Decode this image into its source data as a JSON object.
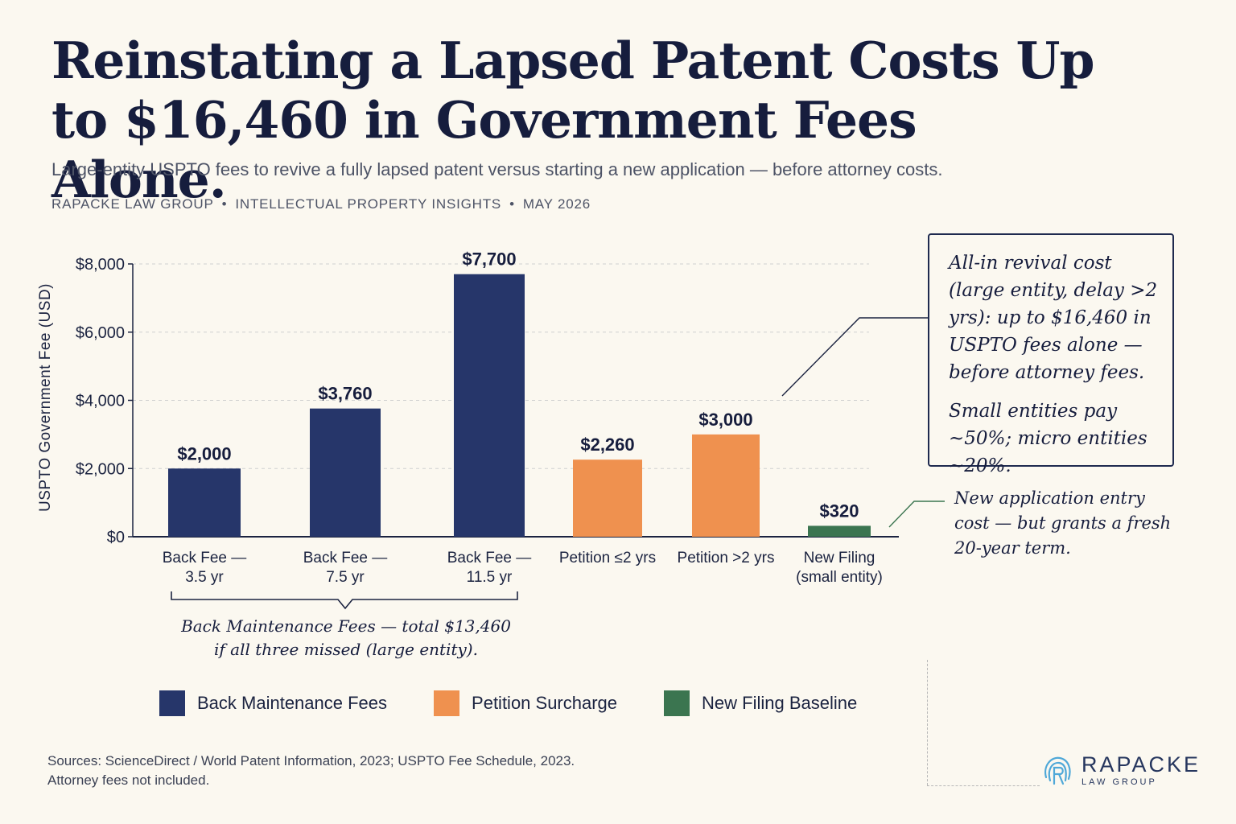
{
  "header": {
    "title": "Reinstating a Lapsed Patent Costs Up to $16,460 in Government Fees Alone.",
    "subtitle": "Large-entity USPTO fees to revive a fully lapsed patent versus starting a new application — before attorney costs.",
    "byline": [
      "RAPACKE LAW GROUP",
      "INTELLECTUAL PROPERTY INSIGHTS",
      "MAY 2026"
    ],
    "byline_separator": "•"
  },
  "chart_data": {
    "type": "bar",
    "ylabel": "USPTO Government Fee (USD)",
    "xlabel": "",
    "ylim": [
      0,
      8000
    ],
    "yticks": [
      0,
      2000,
      4000,
      6000,
      8000
    ],
    "ytick_labels": [
      "$0",
      "$2,000",
      "$4,000",
      "$6,000",
      "$8,000"
    ],
    "grid": true,
    "categories": [
      [
        "Back Fee —",
        "3.5 yr"
      ],
      [
        "Back Fee —",
        "7.5 yr"
      ],
      [
        "Back Fee —",
        "11.5 yr"
      ],
      [
        "Petition ≤2 yrs"
      ],
      [
        "Petition >2 yrs"
      ],
      [
        "New Filing",
        "(small entity)"
      ]
    ],
    "values": [
      2000,
      3760,
      7700,
      2260,
      3000,
      320
    ],
    "value_labels": [
      "$2,000",
      "$3,760",
      "$7,700",
      "$2,260",
      "$3,000",
      "$320"
    ],
    "bar_groups": [
      "Back Maintenance Fees",
      "Back Maintenance Fees",
      "Back Maintenance Fees",
      "Petition Surcharge",
      "Petition Surcharge",
      "New Filing Baseline"
    ],
    "legend": [
      {
        "name": "Back Maintenance Fees",
        "color": "#26366a"
      },
      {
        "name": "Petition Surcharge",
        "color": "#ef914f"
      },
      {
        "name": "New Filing Baseline",
        "color": "#3b7550"
      }
    ],
    "legend_position": "bottom"
  },
  "annotations": {
    "bracket_note": [
      "Back Maintenance Fees — total $13,460",
      "if all three missed (large entity)."
    ],
    "callout": [
      "All-in revival cost (large entity, delay >2 yrs): up to $16,460 in USPTO fees alone — before attorney fees.",
      "Small entities pay ~50%; micro entities ~20%."
    ],
    "new_filing_note": "New application entry cost — but grants a fresh 20-year term."
  },
  "footer": {
    "sources": [
      "Sources: ScienceDirect / World Patent Information, 2023; USPTO Fee Schedule, 2023.",
      "Attorney fees not included."
    ],
    "logo_name": "RAPACKE",
    "logo_sub": "LAW GROUP",
    "logo_icon": "fingerprint-r-icon",
    "logo_color": "#4fa8d8"
  }
}
